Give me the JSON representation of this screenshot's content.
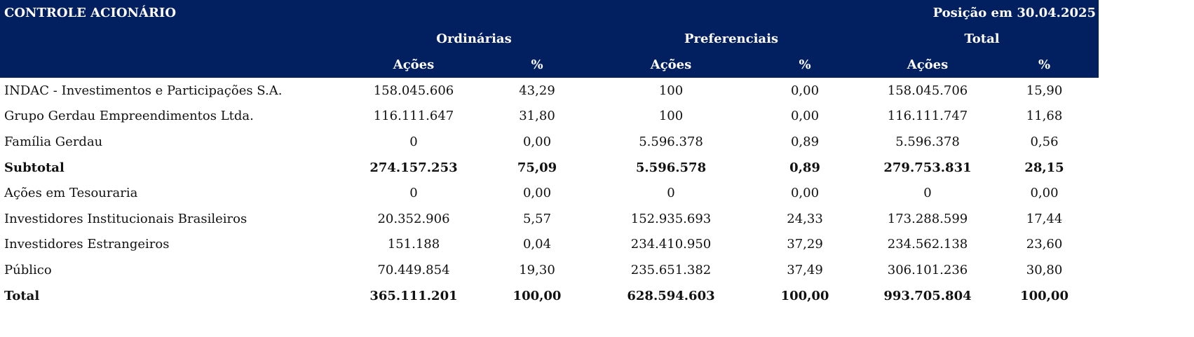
{
  "header": {
    "title": "CONTROLE ACIONÁRIO",
    "position": "Posição em 30.04.2025",
    "groups": [
      "Ordinárias",
      "Preferenciais",
      "Total"
    ],
    "subheaders": [
      "Ações",
      "%",
      "Ações",
      "%",
      "Ações",
      "%"
    ]
  },
  "colors": {
    "header_bg": "#022060",
    "header_text": "#ffffff"
  },
  "rows": [
    {
      "label": "INDAC - Investimentos e Participações S.A.",
      "bold": false,
      "values": [
        "158.045.606",
        "43,29",
        "100",
        "0,00",
        "158.045.706",
        "15,90"
      ]
    },
    {
      "label": "Grupo Gerdau Empreendimentos Ltda.",
      "bold": false,
      "values": [
        "116.111.647",
        "31,80",
        "100",
        "0,00",
        "116.111.747",
        "11,68"
      ]
    },
    {
      "label": "Família Gerdau",
      "bold": false,
      "values": [
        "0",
        "0,00",
        "5.596.378",
        "0,89",
        "5.596.378",
        "0,56"
      ]
    },
    {
      "label": "Subtotal",
      "bold": true,
      "values": [
        "274.157.253",
        "75,09",
        "5.596.578",
        "0,89",
        "279.753.831",
        "28,15"
      ]
    },
    {
      "label": "Ações em Tesouraria",
      "bold": false,
      "values": [
        "0",
        "0,00",
        "0",
        "0,00",
        "0",
        "0,00"
      ]
    },
    {
      "label": "Investidores Institucionais Brasileiros",
      "bold": false,
      "values": [
        "20.352.906",
        "5,57",
        "152.935.693",
        "24,33",
        "173.288.599",
        "17,44"
      ]
    },
    {
      "label": "Investidores Estrangeiros",
      "bold": false,
      "values": [
        "151.188",
        "0,04",
        "234.410.950",
        "37,29",
        "234.562.138",
        "23,60"
      ]
    },
    {
      "label": "Público",
      "bold": false,
      "values": [
        "70.449.854",
        "19,30",
        "235.651.382",
        "37,49",
        "306.101.236",
        "30,80"
      ]
    },
    {
      "label": "Total",
      "bold": true,
      "values": [
        "365.111.201",
        "100,00",
        "628.594.603",
        "100,00",
        "993.705.804",
        "100,00"
      ]
    }
  ]
}
